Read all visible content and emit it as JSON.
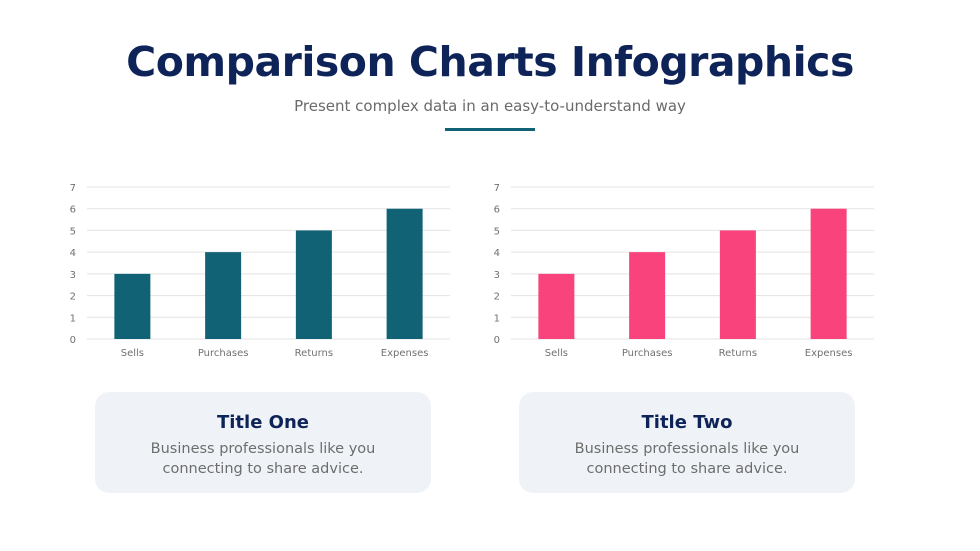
{
  "header": {
    "title": "Comparison Charts Infographics",
    "subtitle": "Present complex data in an easy-to-understand way"
  },
  "chart_data": [
    {
      "type": "bar",
      "categories": [
        "Sells",
        "Purchases",
        "Returns",
        "Expenses"
      ],
      "values": [
        3,
        4,
        5,
        6
      ],
      "ylim": [
        0,
        7
      ],
      "yticks": [
        0,
        1,
        2,
        3,
        4,
        5,
        6,
        7
      ],
      "grid": true,
      "color": "#126276"
    },
    {
      "type": "bar",
      "categories": [
        "Sells",
        "Purchases",
        "Returns",
        "Expenses"
      ],
      "values": [
        3,
        4,
        5,
        6
      ],
      "ylim": [
        0,
        7
      ],
      "yticks": [
        0,
        1,
        2,
        3,
        4,
        5,
        6,
        7
      ],
      "grid": true,
      "color": "#f8437c"
    }
  ],
  "cards": [
    {
      "title": "Title One",
      "text": "Business professionals like you connecting to share advice."
    },
    {
      "title": "Title Two",
      "text": "Business professionals like you connecting to share advice."
    }
  ]
}
